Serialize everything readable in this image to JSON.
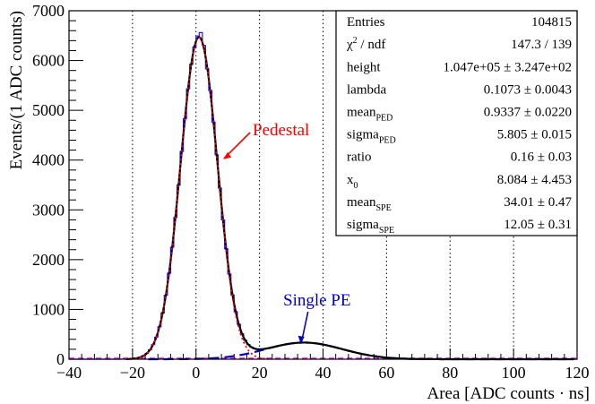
{
  "chart_data": {
    "type": "line",
    "title": "",
    "xlabel": "Area [ADC counts · ns]",
    "ylabel": "Events/(1 ADC counts)",
    "xlim": [
      -40,
      120
    ],
    "ylim": [
      0,
      7000
    ],
    "x_ticks": [
      -40,
      -20,
      0,
      20,
      40,
      60,
      80,
      100,
      120
    ],
    "x_tick_labels": [
      "−40",
      "−20",
      "0",
      "20",
      "40",
      "60",
      "80",
      "100",
      "120"
    ],
    "y_ticks": [
      0,
      1000,
      2000,
      3000,
      4000,
      5000,
      6000,
      7000
    ],
    "y_tick_labels": [
      "0",
      "1000",
      "2000",
      "3000",
      "4000",
      "5000",
      "6000",
      "7000"
    ],
    "grid_x": [
      -20,
      0,
      20,
      40,
      60,
      80,
      100
    ],
    "fit_params": {
      "height": 104700,
      "lambda": 0.1073,
      "mean_ped": 0.9337,
      "sigma_ped": 5.805,
      "mean_spe": 34.01,
      "sigma_spe": 12.05
    },
    "series": [
      {
        "name": "Data histogram",
        "color": "#1a1aff",
        "style": "step"
      },
      {
        "name": "Total fit",
        "color": "#000000",
        "style": "solid"
      },
      {
        "name": "Pedestal",
        "color": "#ff0000",
        "style": "dotted"
      },
      {
        "name": "Single PE",
        "color": "#0000cc",
        "style": "dashed"
      },
      {
        "name": "Baseline",
        "color": "#ff00ff",
        "style": "dashed"
      }
    ],
    "annotations": [
      {
        "text": "Pedestal",
        "color": "#ff0000",
        "points_to_x": 8,
        "points_to_y": 4000
      },
      {
        "text": "Single PE",
        "color": "#0000cc",
        "points_to_x": 33,
        "points_to_y": 290
      }
    ],
    "stats_box": {
      "rows": [
        {
          "label": "Entries",
          "value": "104815"
        },
        {
          "label": "χ",
          "sup": "2",
          "label_tail": " / ndf",
          "value": "147.3 / 139"
        },
        {
          "label": "height",
          "value": "1.047e+05 ± 3.247e+02"
        },
        {
          "label": "lambda",
          "value": "0.1073 ± 0.0043"
        },
        {
          "label": "mean",
          "sub": "PED",
          "value": "0.9337 ± 0.0220"
        },
        {
          "label": "sigma",
          "sub": "PED",
          "value": "5.805 ± 0.015"
        },
        {
          "label": "ratio",
          "value": "0.16 ± 0.03"
        },
        {
          "label": "x",
          "sub": "0",
          "value": "8.084 ± 4.453"
        },
        {
          "label": "mean",
          "sub": "SPE",
          "value": "34.01 ± 0.47"
        },
        {
          "label": "sigma",
          "sub": "SPE",
          "value": "12.05 ± 0.31"
        }
      ]
    }
  }
}
